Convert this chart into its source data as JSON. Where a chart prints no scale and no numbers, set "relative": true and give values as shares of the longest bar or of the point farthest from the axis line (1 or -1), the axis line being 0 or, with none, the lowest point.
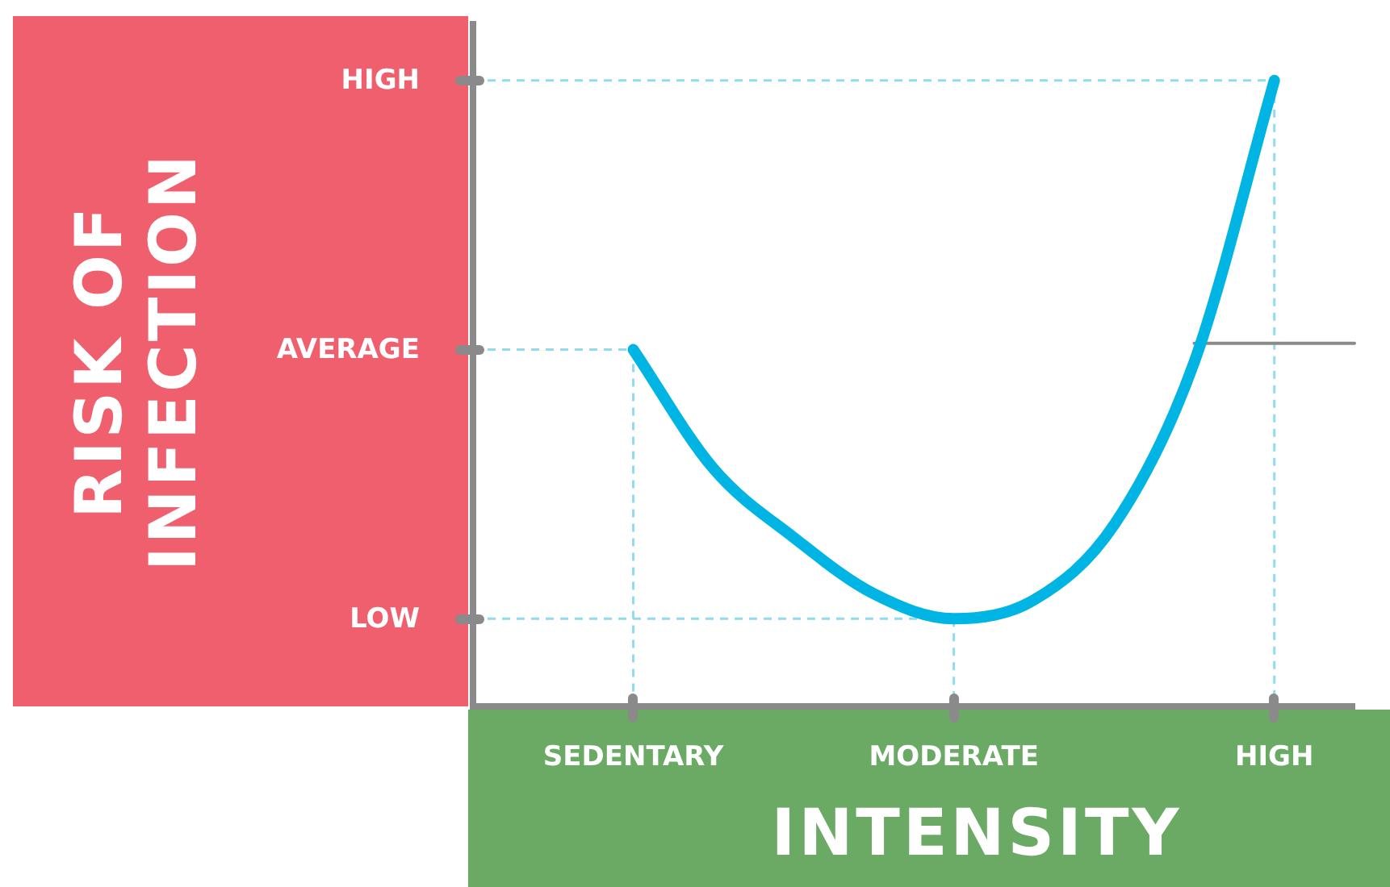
{
  "chart_data": {
    "type": "line",
    "relative": true,
    "xlabel": "INTENSITY",
    "ylabel": "RISK OF INFECTION",
    "categories": [
      null,
      null,
      "SEDENTARY",
      null,
      null,
      null,
      "MODERATE",
      null,
      null,
      null,
      "HIGH",
      null
    ],
    "ref_lines": [
      {
        "axis": "y",
        "value": 0.57,
        "label": "AVERAGE",
        "color": "#8fdcef",
        "line_style": "dashed"
      },
      {
        "axis": "y",
        "value": 0.14,
        "label": "LOW",
        "color": "#8fdcef",
        "line_style": "dashed"
      },
      {
        "axis": "y",
        "value": 1,
        "label": "HIGH",
        "color": "#8fdcef",
        "line_style": "dashed"
      },
      {
        "axis": "x",
        "value": "SEDENTARY",
        "color": "#8fdcef",
        "line_style": "dashed"
      },
      {
        "axis": "x",
        "value": "MODERATE",
        "color": "#8fdcef",
        "line_style": "dashed"
      },
      {
        "axis": "x",
        "value": "HIGH",
        "color": "#8fdcef",
        "line_style": "dashed"
      }
    ],
    "legend": false,
    "series": [
      {
        "color": "#00b4e4",
        "values": [
          null,
          null,
          0.57,
          0.38,
          0.27,
          0.18,
          0.14,
          0.17,
          0.29,
          0.55,
          1,
          null
        ]
      },
      {
        "color": "#8a8a8a",
        "values": [
          null,
          null,
          null,
          null,
          null,
          null,
          null,
          null,
          null,
          0.58,
          0.58,
          0.58
        ]
      }
    ]
  }
}
